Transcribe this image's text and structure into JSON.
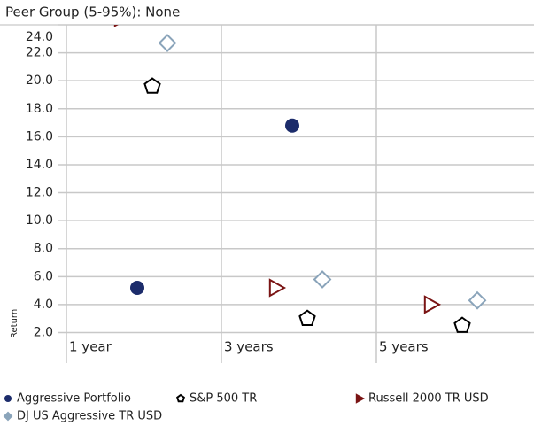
{
  "chart_data": {
    "type": "scatter",
    "title": "Peer Group (5-95%): None",
    "y_label": "Return",
    "categories": [
      "1 year",
      "3 years",
      "5 years"
    ],
    "series": [
      {
        "name": "Aggressive Portfolio",
        "color": "#1c2c6b",
        "marker": "circle",
        "values": [
          5.2,
          16.8,
          null
        ]
      },
      {
        "name": "S&P 500 TR",
        "color": "#000000",
        "marker": "pentagon",
        "values": [
          19.6,
          3.0,
          2.5
        ]
      },
      {
        "name": "Russell 2000 TR USD",
        "color": "#7a1414",
        "marker": "triangle",
        "values": [
          24.5,
          5.2,
          4.0
        ]
      },
      {
        "name": "DJ US Aggressive TR USD",
        "color": "#8aa4ba",
        "marker": "diamond",
        "values": [
          22.7,
          5.8,
          4.3
        ]
      }
    ],
    "ylim": [
      1.4,
      24.0
    ],
    "yticks": [
      {
        "value": 2,
        "label": "2.0"
      },
      {
        "value": 4,
        "label": "4.0"
      },
      {
        "value": 6,
        "label": "6.0"
      },
      {
        "value": 8,
        "label": "8.0"
      },
      {
        "value": 10,
        "label": "10.0"
      },
      {
        "value": 12,
        "label": "12.0"
      },
      {
        "value": 14,
        "label": "14.0"
      },
      {
        "value": 16,
        "label": "16.0"
      },
      {
        "value": 18,
        "label": "18.0"
      },
      {
        "value": 20,
        "label": "20.0"
      },
      {
        "value": 22,
        "label": "22.0"
      },
      {
        "value": 24,
        "label": "24.0"
      }
    ],
    "grid": true
  }
}
